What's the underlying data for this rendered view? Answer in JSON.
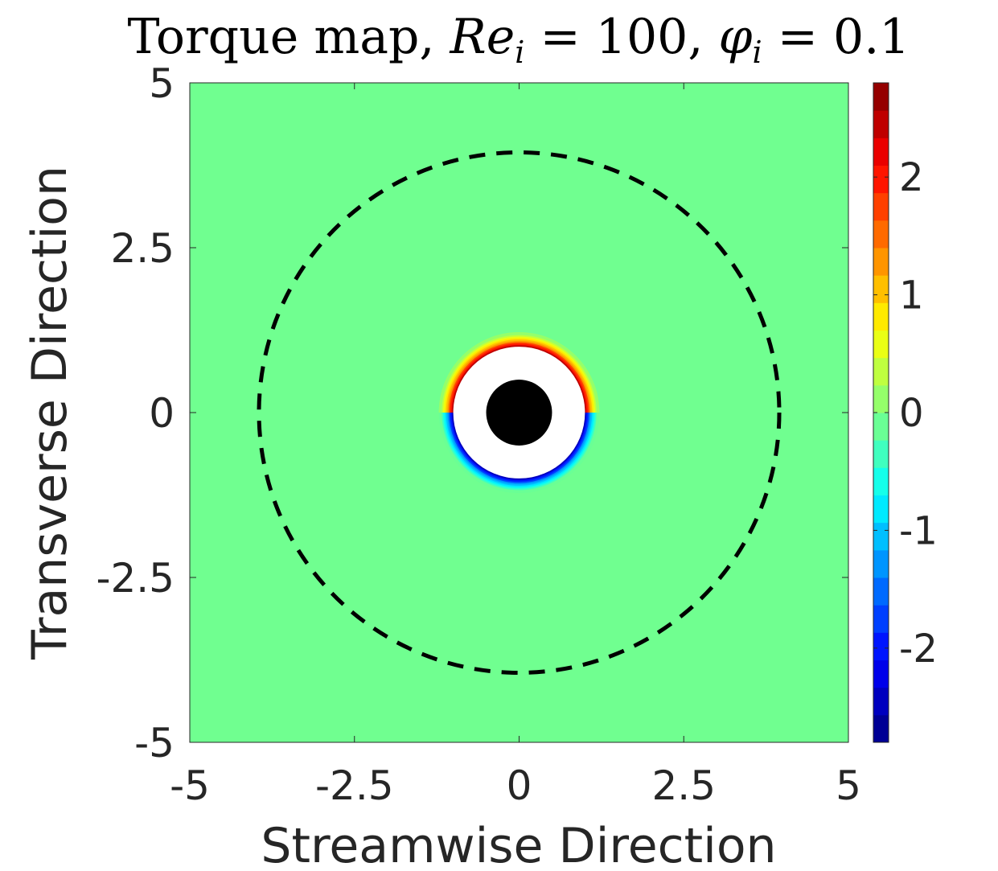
{
  "chart_data": {
    "type": "heatmap",
    "title": {
      "prefix": "Torque map, ",
      "re_symbol": "Re",
      "re_sub": "i",
      "re_value": " = 100, ",
      "phi_symbol": "φ",
      "phi_sub": "i",
      "phi_value": " = 0.1"
    },
    "xlabel": "Streamwise Direction",
    "ylabel": "Transverse Direction",
    "xlim": [
      -5,
      5
    ],
    "ylim": [
      -5,
      5
    ],
    "xticks": [
      -5,
      -2.5,
      0,
      2.5,
      5
    ],
    "yticks": [
      -5,
      -2.5,
      0,
      2.5,
      5
    ],
    "xtick_labels": [
      "-5",
      "-2.5",
      "0",
      "2.5",
      "5"
    ],
    "ytick_labels": [
      "-5",
      "-2.5",
      "0",
      "2.5",
      "5"
    ],
    "colorbar": {
      "colormap": "jet",
      "clim": [
        -2.8,
        2.8
      ],
      "levels": 24,
      "ticks": [
        -2,
        -1,
        0,
        1,
        2
      ],
      "tick_labels": [
        "-2",
        "-1",
        "0",
        "1",
        "2"
      ]
    },
    "background_value": 0,
    "background_color": "#70ff90",
    "particle": {
      "center": [
        0,
        0
      ],
      "radius": 0.5,
      "color": "#000000"
    },
    "excluded_region": {
      "center": [
        0,
        0
      ],
      "radius": 1.0,
      "color": "#ffffff"
    },
    "torque_band": {
      "center": [
        0,
        0
      ],
      "inner_radius": 1.0,
      "outer_radius": 1.22,
      "upper_peak": 2.4,
      "lower_peak": -2.4
    },
    "dashed_circle": {
      "center": [
        0,
        0
      ],
      "radius": 3.95
    },
    "grid": false,
    "legend": "none"
  }
}
